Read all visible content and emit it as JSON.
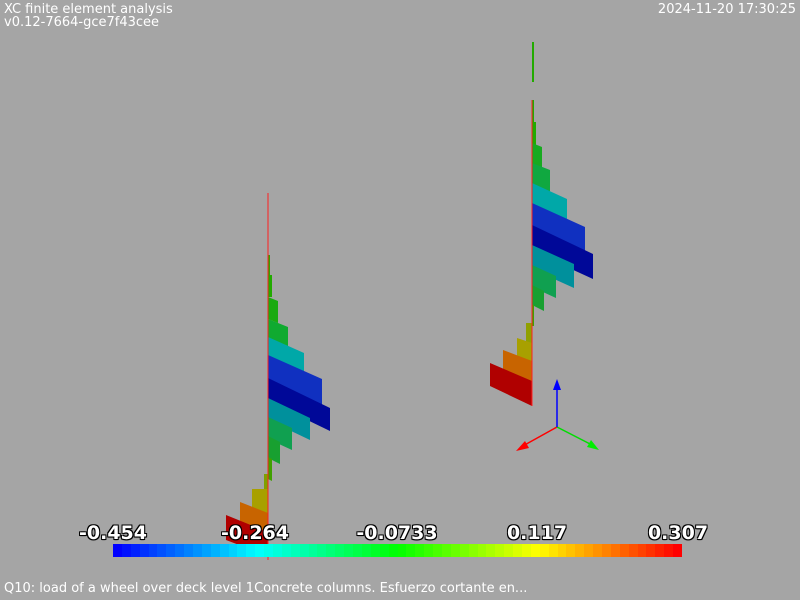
{
  "header": {
    "title": "XC finite element analysis",
    "version": "v0.12-7664-gce7f43cee",
    "timestamp": "2024-11-20 17:30:25"
  },
  "colorbar": {
    "labels": [
      "-0.454",
      "-0.264",
      "-0.0733",
      "0.117",
      "0.307"
    ],
    "gradient": [
      "#0000ff",
      "#00ffff",
      "#00ff00",
      "#ffff00",
      "#ff0000"
    ]
  },
  "axes_triad": {
    "x_color": "#ff0000",
    "y_color": "#00ff00",
    "z_color": "#0000ff"
  },
  "footer": {
    "caption": "Q10: load of a wheel over deck level 1Concrete columns. Esfuerzo cortante en..."
  }
}
